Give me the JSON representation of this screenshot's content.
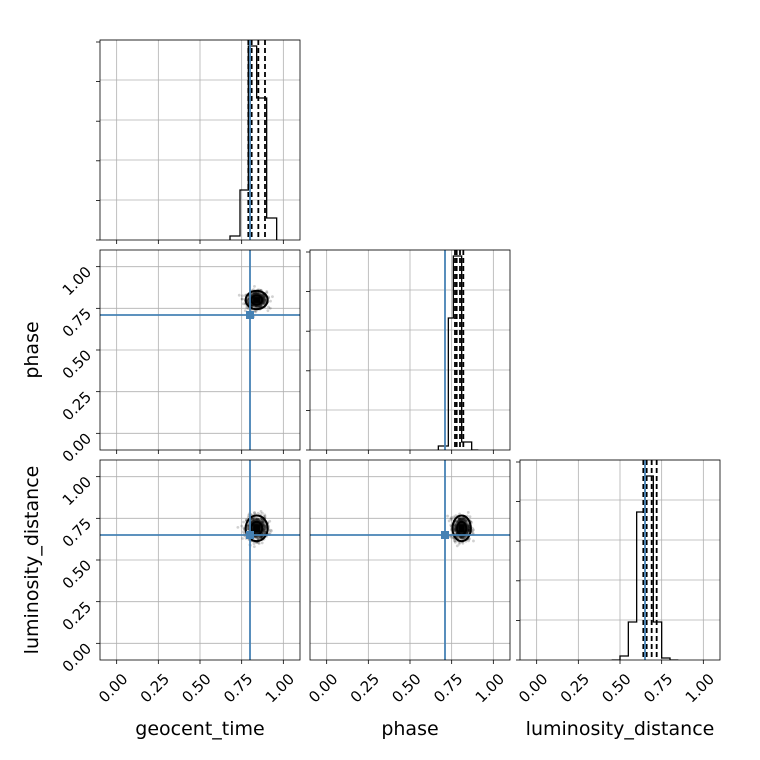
{
  "chart_data": {
    "type": "corner",
    "parameters": [
      {
        "name": "geocent_time",
        "xlabel": "geocent_time",
        "ylabel": ""
      },
      {
        "name": "phase",
        "xlabel": "phase",
        "ylabel": "phase"
      },
      {
        "name": "luminosity_distance",
        "xlabel": "luminosity_distance",
        "ylabel": "luminosity_distance"
      }
    ],
    "axis_range": [
      -0.1,
      1.1
    ],
    "tick_values": [
      0.0,
      0.25,
      0.5,
      0.75,
      1.0
    ],
    "tick_labels": [
      "0.00",
      "0.25",
      "0.50",
      "0.75",
      "1.00"
    ],
    "grid": true,
    "truths": [
      0.8,
      0.71,
      0.65
    ],
    "truth_color": "#4682b4",
    "posterior_medians": [
      0.84,
      0.8,
      0.7
    ],
    "quantile_lines": [
      [
        0.79,
        0.81,
        0.85,
        0.89
      ],
      [
        0.77,
        0.78,
        0.8,
        0.82
      ],
      [
        0.64,
        0.66,
        0.69,
        0.72
      ]
    ],
    "histograms": [
      {
        "bin_edges": [
          0.68,
          0.74,
          0.79,
          0.84,
          0.9,
          0.96
        ],
        "counts": [
          0.02,
          0.25,
          0.97,
          0.71,
          0.11
        ]
      },
      {
        "bin_edges": [
          0.67,
          0.73,
          0.76,
          0.81,
          0.87,
          0.91
        ],
        "counts": [
          0.02,
          0.66,
          0.97,
          0.04,
          0.0
        ]
      },
      {
        "bin_edges": [
          0.45,
          0.5,
          0.55,
          0.6,
          0.65,
          0.7,
          0.75,
          0.8,
          0.85
        ],
        "counts": [
          0.0,
          0.02,
          0.19,
          0.74,
          0.92,
          0.19,
          0.01,
          0.0
        ]
      }
    ],
    "scatter_panels": [
      {
        "x": "geocent_time",
        "y": "phase",
        "center": [
          0.84,
          0.8
        ],
        "spread": [
          0.03,
          0.025
        ]
      },
      {
        "x": "geocent_time",
        "y": "luminosity_distance",
        "center": [
          0.84,
          0.69
        ],
        "spread": [
          0.03,
          0.035
        ]
      },
      {
        "x": "phase",
        "y": "luminosity_distance",
        "center": [
          0.81,
          0.69
        ],
        "spread": [
          0.025,
          0.035
        ]
      }
    ]
  }
}
